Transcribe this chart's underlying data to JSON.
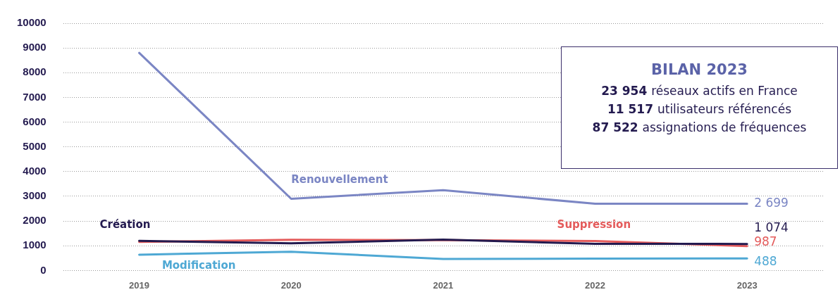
{
  "chart_data": {
    "type": "line",
    "categories": [
      "2019",
      "2020",
      "2021",
      "2022",
      "2023"
    ],
    "series": [
      {
        "name": "Renouvellement",
        "color": "#7b86c4",
        "values": [
          8800,
          2900,
          3250,
          2700,
          2699
        ],
        "value_labels": [
          null,
          null,
          null,
          null,
          "2 699"
        ]
      },
      {
        "name": "Création",
        "color": "#231a4f",
        "values": [
          1200,
          1100,
          1250,
          1080,
          1074
        ],
        "value_labels": [
          null,
          null,
          null,
          null,
          "1 074"
        ]
      },
      {
        "name": "Suppression",
        "color": "#e45b5b",
        "values": [
          1160,
          1240,
          1230,
          1190,
          987
        ],
        "value_labels": [
          null,
          null,
          null,
          null,
          "987"
        ]
      },
      {
        "name": "Modification",
        "color": "#4ea8d4",
        "values": [
          640,
          760,
          470,
          480,
          488
        ],
        "value_labels": [
          null,
          null,
          null,
          null,
          "488"
        ]
      }
    ],
    "ylim": [
      0,
      10000
    ],
    "yticks": [
      0,
      1000,
      2000,
      3000,
      4000,
      5000,
      6000,
      7000,
      8000,
      9000,
      10000
    ],
    "grid": "y",
    "legend": false,
    "marker": "none",
    "line_style": "solid",
    "annotations": [
      "BILAN 2023",
      "23 954 réseaux actifs en France",
      "11 517 utilisateurs référencés",
      "87 522 assignations de fréquences"
    ]
  }
}
